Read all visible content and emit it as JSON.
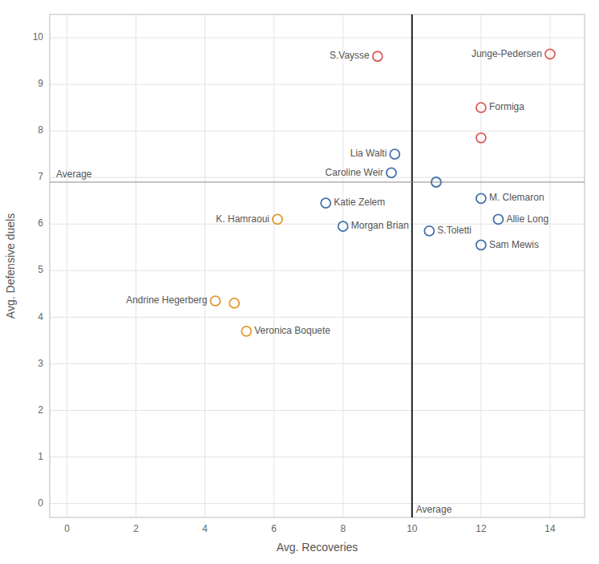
{
  "chart_data": {
    "type": "scatter",
    "xlabel": "Avg. Recoveries",
    "ylabel": "Avg. Defensive duels",
    "x": [
      9.0,
      14.0,
      12.0,
      12.0,
      9.5,
      9.4,
      10.7,
      7.5,
      6.1,
      8.0,
      10.5,
      12.0,
      12.5,
      12.0,
      4.3,
      4.85,
      5.2
    ],
    "values": [
      9.6,
      9.65,
      8.5,
      7.85,
      7.5,
      7.1,
      6.9,
      6.45,
      6.1,
      5.95,
      5.85,
      6.55,
      6.1,
      5.55,
      4.35,
      4.3,
      3.7
    ],
    "colors": [
      "#e05a5a",
      "#e05a5a",
      "#e05a5a",
      "#e05a5a",
      "#4472aa",
      "#4472aa",
      "#4472aa",
      "#4472aa",
      "#e09930",
      "#4472aa",
      "#4472aa",
      "#4472aa",
      "#4472aa",
      "#4472aa",
      "#e09930",
      "#e09930",
      "#e09930"
    ],
    "point_labels": [
      "S.Vaysse",
      "Junge-Pedersen",
      "Formiga",
      null,
      "Lia Walti",
      "Caroline Weir",
      null,
      "Katie Zelem",
      "K. Hamraoui",
      "Morgan Brian",
      "S.Toletti",
      "M. Clemaron",
      "Allie Long",
      "Sam Mewis",
      "Andrine Hegerberg",
      null,
      "Veronica Boquete"
    ],
    "reference_lines": [
      {
        "axis": "x",
        "value": 10.0,
        "label": "Average"
      },
      {
        "axis": "y",
        "value": 6.9,
        "label": "Average"
      }
    ],
    "xlim": [
      -0.5,
      15
    ],
    "ylim": [
      -0.3,
      10.5
    ],
    "xticks": [
      0,
      2,
      4,
      6,
      8,
      10,
      12,
      14
    ],
    "yticks": [
      0,
      1,
      2,
      3,
      4,
      5,
      6,
      7,
      8,
      9,
      10
    ],
    "grid": true
  }
}
